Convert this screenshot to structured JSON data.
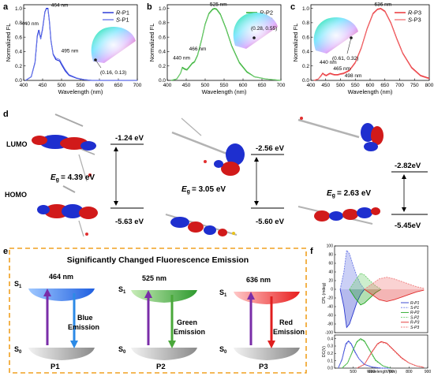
{
  "panels": {
    "a": {
      "label": "a",
      "ylabel": "Normalized FL",
      "xlabel": "Wavelength (nm)",
      "legend": [
        "R-P1",
        "S-P1"
      ],
      "peaks": [
        "464 nm",
        "440 nm",
        "495 nm"
      ],
      "cie": "(0.16, 0.13)"
    },
    "b": {
      "label": "b",
      "ylabel": "Normalized FL",
      "xlabel": "Wavelength (nm)",
      "legend": [
        "R-P2",
        "S-P2"
      ],
      "peaks": [
        "525 nm",
        "440 nm",
        "466 nm"
      ],
      "cie": "(0.28, 0.55)"
    },
    "c": {
      "label": "c",
      "ylabel": "Normalized FL",
      "xlabel": "Wavelength (nm)",
      "legend": [
        "R-P3",
        "S-P3"
      ],
      "peaks": [
        "636 nm",
        "440 nm",
        "465 nm",
        "498 nm"
      ],
      "cie": "(0.61, 0.32)"
    },
    "d": {
      "label": "d",
      "lumo": "LUMO",
      "homo": "HOMO",
      "cols": [
        {
          "lumo": "-1.24 eV",
          "homo": "-5.63 eV",
          "eg": "= 4.39 eV"
        },
        {
          "lumo": "-2.56 eV",
          "homo": "-5.60 eV",
          "eg": "= 3.05 eV"
        },
        {
          "lumo": "-2.82eV",
          "homo": "-5.45eV",
          "eg": "= 2.63 eV"
        }
      ],
      "eg_symbol": "E",
      "eg_sub": "g"
    },
    "e": {
      "label": "e",
      "title": "Significantly Changed Fluorescence Emission",
      "s1": "S",
      "s0": "S",
      "items": [
        {
          "nm": "464 nm",
          "emis1": "Blue",
          "emis2": "Emission",
          "name": "P1"
        },
        {
          "nm": "525 nm",
          "emis1": "Green",
          "emis2": "Emission",
          "name": "P2"
        },
        {
          "nm": "636 nm",
          "emis1": "Red",
          "emis2": "Emission",
          "name": "P3"
        }
      ]
    },
    "f": {
      "label": "f",
      "cpl_ylabel": "CPL (mdeg)",
      "dc_ylabel": "DC(V)",
      "xlabel": "Wavelength (nm)",
      "legend": [
        "R-P1",
        "S-P1",
        "R-P2",
        "S-P2",
        "R-P3",
        "S-P3"
      ],
      "cpl_ticks": [
        "100",
        "80",
        "60",
        "40",
        "20",
        "0",
        "-20",
        "-40",
        "-60",
        "-80",
        "-100"
      ],
      "dc_ticks": [
        "0.4",
        "0.3",
        "0.2",
        "0.1",
        "0.0"
      ],
      "x_ticks": [
        "500",
        "600",
        "700",
        "800",
        "900"
      ]
    }
  },
  "chart_data": [
    {
      "type": "line",
      "panel": "a",
      "xlabel": "Wavelength (nm)",
      "ylabel": "Normalized FL",
      "xlim": [
        400,
        700
      ],
      "ylim": [
        0,
        1.05
      ],
      "x_ticks": [
        400,
        450,
        500,
        550,
        600,
        650,
        700
      ],
      "y_ticks": [
        0.0,
        0.2,
        0.4,
        0.6,
        0.8,
        1.0
      ],
      "series": [
        {
          "name": "R-P1",
          "color": "#1f2fd6",
          "x": [
            405,
            420,
            430,
            436,
            440,
            445,
            450,
            456,
            460,
            464,
            468,
            472,
            478,
            485,
            490,
            495,
            500,
            510,
            520,
            540,
            560,
            580,
            600,
            650,
            700
          ],
          "y": [
            0.0,
            0.05,
            0.25,
            0.62,
            0.7,
            0.58,
            0.72,
            0.95,
            1.0,
            1.0,
            0.82,
            0.55,
            0.36,
            0.29,
            0.28,
            0.27,
            0.22,
            0.13,
            0.07,
            0.03,
            0.01,
            0.0,
            0.0,
            0.0,
            0.0
          ]
        },
        {
          "name": "S-P1",
          "color": "#6c7bea",
          "x": [
            405,
            420,
            430,
            436,
            440,
            445,
            450,
            456,
            460,
            464,
            468,
            472,
            478,
            485,
            490,
            495,
            500,
            510,
            520,
            540,
            560,
            580,
            600,
            650,
            700
          ],
          "y": [
            0.0,
            0.05,
            0.24,
            0.6,
            0.68,
            0.57,
            0.7,
            0.94,
            0.99,
            0.99,
            0.81,
            0.54,
            0.37,
            0.31,
            0.3,
            0.29,
            0.24,
            0.15,
            0.08,
            0.035,
            0.012,
            0.0,
            0.0,
            0.0,
            0.0
          ]
        }
      ]
    },
    {
      "type": "line",
      "panel": "b",
      "xlabel": "Wavelength (nm)",
      "ylabel": "Normalized FL",
      "xlim": [
        400,
        700
      ],
      "ylim": [
        0,
        1.05
      ],
      "x_ticks": [
        400,
        450,
        500,
        550,
        600,
        650,
        700
      ],
      "y_ticks": [
        0.0,
        0.2,
        0.4,
        0.6,
        0.8,
        1.0
      ],
      "series": [
        {
          "name": "R-P2",
          "color": "#1aa51a",
          "x": [
            410,
            425,
            435,
            440,
            446,
            452,
            460,
            466,
            472,
            480,
            490,
            500,
            510,
            520,
            525,
            530,
            540,
            555,
            570,
            590,
            610,
            630,
            660,
            700
          ],
          "y": [
            0.0,
            0.02,
            0.1,
            0.18,
            0.16,
            0.15,
            0.2,
            0.24,
            0.26,
            0.35,
            0.55,
            0.78,
            0.93,
            0.99,
            1.0,
            0.99,
            0.92,
            0.72,
            0.48,
            0.25,
            0.12,
            0.05,
            0.02,
            0.0
          ]
        },
        {
          "name": "S-P2",
          "color": "#7bd07b",
          "x": [
            410,
            425,
            435,
            440,
            446,
            452,
            460,
            466,
            472,
            480,
            490,
            500,
            510,
            520,
            525,
            530,
            540,
            555,
            570,
            590,
            610,
            630,
            660,
            700
          ],
          "y": [
            0.0,
            0.02,
            0.1,
            0.17,
            0.15,
            0.14,
            0.19,
            0.23,
            0.25,
            0.34,
            0.54,
            0.77,
            0.92,
            0.98,
            0.99,
            0.98,
            0.91,
            0.71,
            0.47,
            0.24,
            0.11,
            0.05,
            0.02,
            0.0
          ]
        }
      ]
    },
    {
      "type": "line",
      "panel": "c",
      "xlabel": "Wavelength (nm)",
      "ylabel": "Normalized FL",
      "xlim": [
        400,
        800
      ],
      "ylim": [
        0,
        1.05
      ],
      "x_ticks": [
        400,
        450,
        500,
        550,
        600,
        650,
        700,
        750,
        800
      ],
      "y_ticks": [
        0.0,
        0.2,
        0.4,
        0.6,
        0.8,
        1.0
      ],
      "series": [
        {
          "name": "R-P3",
          "color": "#e8262b",
          "x": [
            410,
            425,
            435,
            440,
            446,
            452,
            460,
            465,
            472,
            480,
            490,
            498,
            510,
            530,
            550,
            570,
            590,
            610,
            625,
            636,
            650,
            670,
            690,
            710,
            740,
            770,
            800
          ],
          "y": [
            0.0,
            0.02,
            0.07,
            0.1,
            0.08,
            0.07,
            0.09,
            0.1,
            0.09,
            0.08,
            0.08,
            0.09,
            0.1,
            0.14,
            0.25,
            0.45,
            0.72,
            0.93,
            0.99,
            1.0,
            0.96,
            0.8,
            0.58,
            0.38,
            0.18,
            0.07,
            0.03
          ]
        },
        {
          "name": "S-P3",
          "color": "#f27a7d",
          "x": [
            410,
            425,
            435,
            440,
            446,
            452,
            460,
            465,
            472,
            480,
            490,
            498,
            510,
            530,
            550,
            570,
            590,
            610,
            625,
            636,
            650,
            670,
            690,
            710,
            740,
            770,
            800
          ],
          "y": [
            0.0,
            0.02,
            0.06,
            0.09,
            0.07,
            0.06,
            0.08,
            0.09,
            0.08,
            0.07,
            0.07,
            0.08,
            0.09,
            0.13,
            0.24,
            0.44,
            0.71,
            0.92,
            0.98,
            0.99,
            0.95,
            0.79,
            0.57,
            0.37,
            0.17,
            0.06,
            0.02
          ]
        }
      ]
    },
    {
      "type": "line",
      "panel": "f-cpl",
      "ylabel": "CPL (mdeg)",
      "xlim": [
        400,
        900
      ],
      "ylim": [
        -100,
        100
      ],
      "series": [
        {
          "name": "R-P1",
          "color": "#2a38cf",
          "x": [
            430,
            450,
            465,
            480,
            500,
            520,
            540,
            560
          ],
          "y": [
            0,
            -40,
            -88,
            -80,
            -55,
            -30,
            -12,
            0
          ]
        },
        {
          "name": "S-P1",
          "color": "#6b78e6",
          "x": [
            430,
            450,
            465,
            480,
            500,
            520,
            540,
            560
          ],
          "y": [
            0,
            40,
            90,
            82,
            55,
            30,
            12,
            0
          ]
        },
        {
          "name": "R-P2",
          "color": "#22a622",
          "x": [
            480,
            510,
            540,
            560,
            590,
            620,
            650
          ],
          "y": [
            0,
            -20,
            -36,
            -32,
            -20,
            -8,
            0
          ]
        },
        {
          "name": "S-P2",
          "color": "#6fce6f",
          "x": [
            480,
            510,
            540,
            560,
            590,
            620,
            650
          ],
          "y": [
            0,
            20,
            37,
            33,
            20,
            8,
            0
          ]
        },
        {
          "name": "R-P3",
          "color": "#e02a2a",
          "x": [
            560,
            600,
            640,
            680,
            720,
            760,
            800,
            840,
            880
          ],
          "y": [
            0,
            -12,
            -24,
            -28,
            -24,
            -18,
            -12,
            -6,
            -2
          ]
        },
        {
          "name": "S-P3",
          "color": "#f07f7f",
          "x": [
            560,
            600,
            640,
            680,
            720,
            760,
            800,
            840,
            880
          ],
          "y": [
            0,
            12,
            24,
            28,
            24,
            18,
            12,
            6,
            2
          ]
        }
      ]
    },
    {
      "type": "line",
      "panel": "f-dc",
      "xlabel": "Wavelength (nm)",
      "ylabel": "DC(V)",
      "xlim": [
        400,
        900
      ],
      "ylim": [
        0,
        0.45
      ],
      "series": [
        {
          "name": "R-P1",
          "color": "#2a38cf",
          "x": [
            420,
            440,
            460,
            475,
            490,
            510,
            530,
            560,
            600,
            650,
            700
          ],
          "y": [
            0,
            0.12,
            0.33,
            0.37,
            0.33,
            0.22,
            0.13,
            0.05,
            0.015,
            0,
            0
          ]
        },
        {
          "name": "S-P1",
          "color": "#6b78e6",
          "x": [
            420,
            440,
            460,
            475,
            490,
            510,
            530,
            560,
            600,
            650,
            700
          ],
          "y": [
            0,
            0.11,
            0.31,
            0.36,
            0.32,
            0.21,
            0.13,
            0.05,
            0.015,
            0,
            0
          ]
        },
        {
          "name": "R-P2",
          "color": "#22a622",
          "x": [
            440,
            470,
            500,
            520,
            540,
            560,
            590,
            620,
            660,
            700
          ],
          "y": [
            0,
            0.07,
            0.25,
            0.36,
            0.4,
            0.37,
            0.24,
            0.11,
            0.03,
            0
          ]
        },
        {
          "name": "S-P2",
          "color": "#6fce6f",
          "x": [
            440,
            470,
            500,
            520,
            540,
            560,
            590,
            620,
            660,
            700
          ],
          "y": [
            0,
            0.07,
            0.24,
            0.35,
            0.39,
            0.36,
            0.23,
            0.1,
            0.03,
            0
          ]
        },
        {
          "name": "R-P3",
          "color": "#e02a2a",
          "x": [
            520,
            560,
            600,
            630,
            650,
            680,
            720,
            760,
            800,
            840,
            880
          ],
          "y": [
            0,
            0.05,
            0.22,
            0.33,
            0.36,
            0.34,
            0.24,
            0.14,
            0.07,
            0.03,
            0.01
          ]
        },
        {
          "name": "S-P3",
          "color": "#f07f7f",
          "x": [
            520,
            560,
            600,
            630,
            650,
            680,
            720,
            760,
            800,
            840,
            880
          ],
          "y": [
            0,
            0.05,
            0.21,
            0.32,
            0.35,
            0.33,
            0.23,
            0.13,
            0.07,
            0.03,
            0.01
          ]
        }
      ]
    }
  ]
}
